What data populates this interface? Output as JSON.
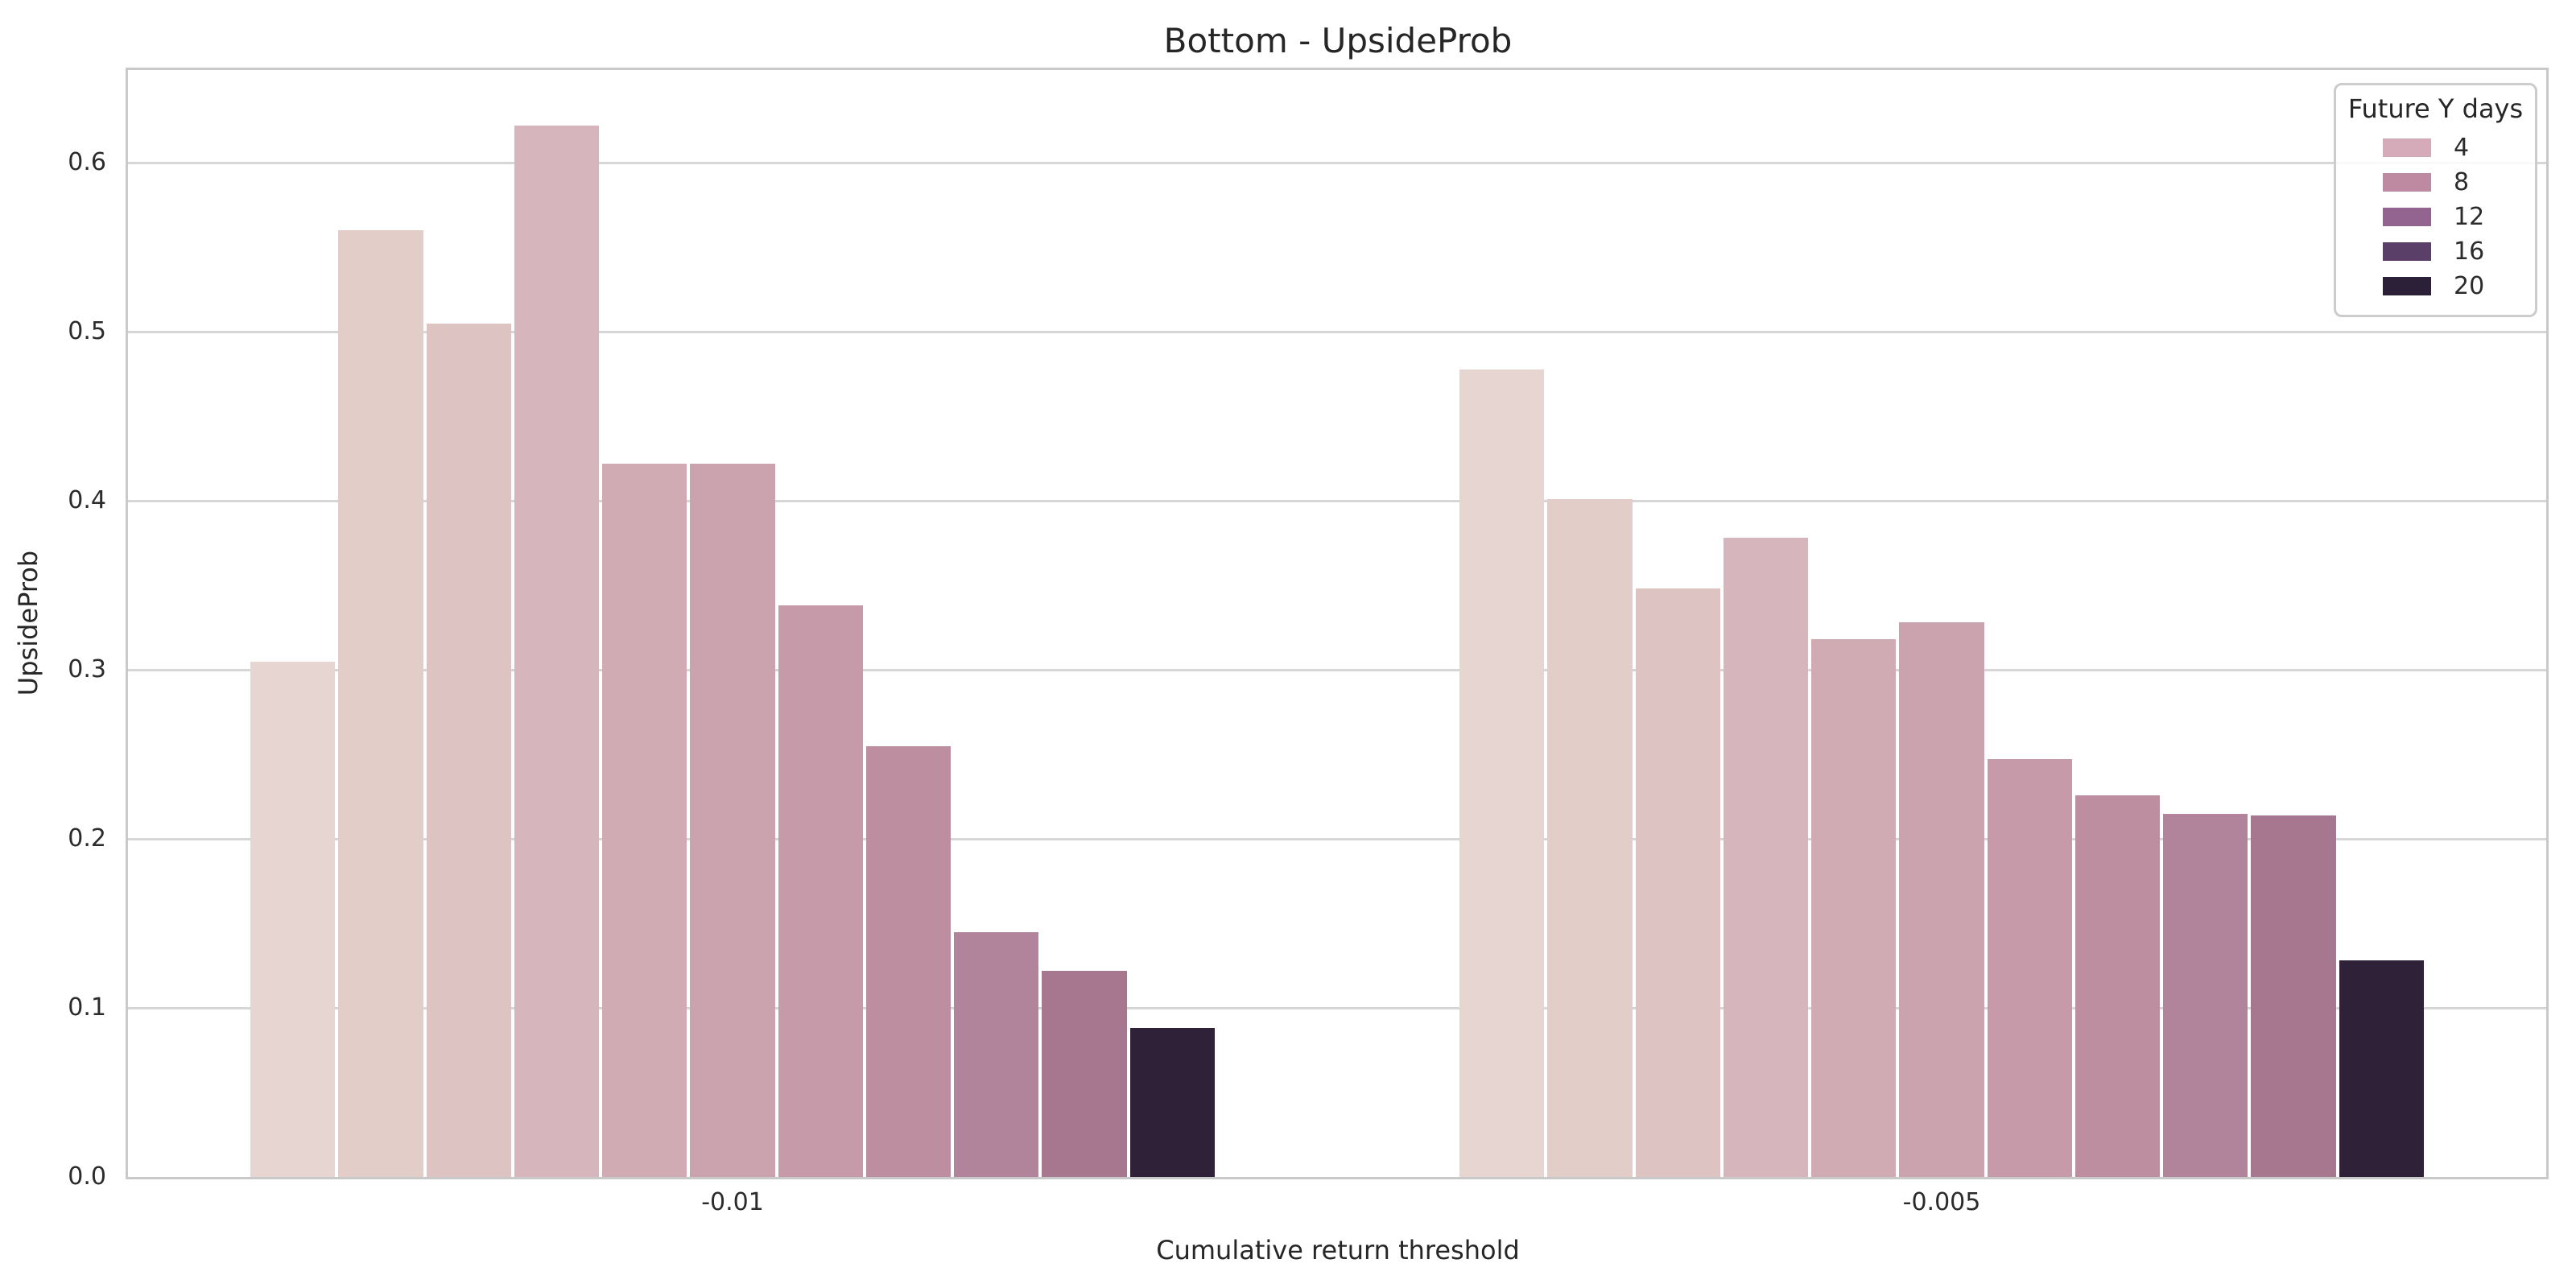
{
  "chart_data": {
    "type": "bar",
    "title": "Bottom - UpsideProb",
    "xlabel": "Cumulative return threshold",
    "ylabel": "UpsideProb",
    "categories": [
      "-0.01",
      "-0.005"
    ],
    "yticks": [
      "0.0",
      "0.1",
      "0.2",
      "0.3",
      "0.4",
      "0.5",
      "0.6"
    ],
    "ylim": [
      0,
      0.655
    ],
    "grid": "horizontal",
    "groups": [
      {
        "category": "-0.01",
        "values": [
          0.305,
          0.56,
          0.505,
          0.622,
          0.422,
          0.422,
          0.338,
          0.255,
          0.145,
          0.122,
          0.088
        ]
      },
      {
        "category": "-0.005",
        "values": [
          0.478,
          0.401,
          0.348,
          0.378,
          0.318,
          0.328,
          0.247,
          0.226,
          0.215,
          0.214,
          0.128
        ]
      }
    ],
    "bar_colors": [
      "#e7d5d1",
      "#e3cdc9",
      "#dec3c3",
      "#d6b5bc",
      "#d1abb4",
      "#cba3ae",
      "#c69aa8",
      "#bc8ea0",
      "#b2849b",
      "#a7778f",
      "#2e2138"
    ],
    "legend": {
      "title": "Future Y days",
      "position": "upper right",
      "entries": [
        {
          "label": "4",
          "color": "#d5abb9"
        },
        {
          "label": "8",
          "color": "#bd8aa2"
        },
        {
          "label": "12",
          "color": "#93648f"
        },
        {
          "label": "16",
          "color": "#5a4069"
        },
        {
          "label": "20",
          "color": "#2c2038"
        }
      ]
    },
    "style": {
      "background": "#ffffff",
      "grid_color": "#d6d6d6",
      "spine_color": "#c9c9c9",
      "text_color": "#262626"
    }
  }
}
